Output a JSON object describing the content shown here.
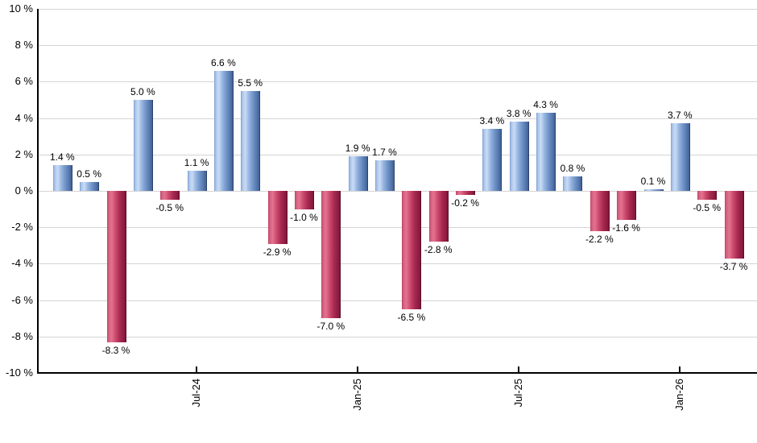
{
  "chart_data": {
    "type": "bar",
    "title": "",
    "values": [
      1.4,
      0.5,
      -8.3,
      5.0,
      -0.5,
      1.1,
      6.6,
      5.5,
      -2.9,
      -1.0,
      -7.0,
      1.9,
      1.7,
      -6.5,
      -2.8,
      -0.2,
      3.4,
      3.8,
      4.3,
      0.8,
      -2.2,
      -1.6,
      0.1,
      3.7,
      -0.5,
      -3.7
    ],
    "bar_labels": [
      "1.4 %",
      "0.5 %",
      "-8.3 %",
      "5.0 %",
      "-0.5 %",
      "1.1 %",
      "6.6 %",
      "5.5 %",
      "-2.9 %",
      "-1.0 %",
      "-7.0 %",
      "1.9 %",
      "1.7 %",
      "-6.5 %",
      "-2.8 %",
      "-0.2 %",
      "3.4 %",
      "3.8 %",
      "4.3 %",
      "0.8 %",
      "-2.2 %",
      "-1.6 %",
      "0.1 %",
      "3.7 %",
      "-0.5 %",
      "-3.7 %"
    ],
    "x_ticks": [
      {
        "index": 5,
        "label": "Jul-24"
      },
      {
        "index": 11,
        "label": "Jan-25"
      },
      {
        "index": 17,
        "label": "Jul-25"
      },
      {
        "index": 23,
        "label": "Jan-26"
      }
    ],
    "y_ticks": [
      {
        "value": 10,
        "label": "10 %"
      },
      {
        "value": 8,
        "label": "8 %"
      },
      {
        "value": 6,
        "label": "6 %"
      },
      {
        "value": 4,
        "label": "4 %"
      },
      {
        "value": 2,
        "label": "2 %"
      },
      {
        "value": 0,
        "label": "0 %"
      },
      {
        "value": -2,
        "label": "-2 %"
      },
      {
        "value": -4,
        "label": "-4 %"
      },
      {
        "value": -6,
        "label": "-6 %"
      },
      {
        "value": -8,
        "label": "-8 %"
      },
      {
        "value": -10,
        "label": "-10 %"
      }
    ],
    "ylim": [
      -10,
      10
    ],
    "xlabel": "",
    "ylabel": "",
    "grid": true,
    "legend": "none",
    "colors": {
      "positive_gradient": [
        "#7e9cce",
        "#a9c4ea",
        "#c9dcf4",
        "#95b3e0",
        "#6a8ec2",
        "#41639a"
      ],
      "positive_edge": "#2c4166",
      "negative_gradient": [
        "#bc4264",
        "#d25f7e",
        "#e4738f",
        "#cc4a6e",
        "#a72950",
        "#82163a"
      ],
      "negative_edge": "#570f27",
      "gridline": "#d4d4d4",
      "axis": "#000000",
      "label_text": "#000000",
      "background": "#ffffff"
    }
  }
}
